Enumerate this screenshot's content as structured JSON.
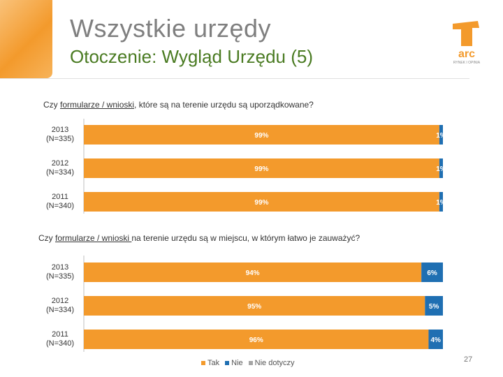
{
  "header": {
    "title": "Wszystkie urzędy",
    "subtitle": "Otoczenie: Wygląd Urzędu (5)"
  },
  "logo": {
    "brand": "arc",
    "tagline": "RYNEK I OPINIA"
  },
  "page_number": "27",
  "legend": {
    "items": [
      {
        "label": "Tak",
        "color": "#f39a2c"
      },
      {
        "label": "Nie",
        "color": "#1f6fb2"
      },
      {
        "label": "Nie dotyczy",
        "color": "#a5a5a5"
      }
    ]
  },
  "chart_data": [
    {
      "type": "bar",
      "orientation": "horizontal-stacked-100",
      "title_parts": [
        "Czy ",
        "formularze / wnioski",
        ", które są na terenie urzędu są uporządkowane?"
      ],
      "categories": [
        "2013\n(N=335)",
        "2012\n(N=334)",
        "2011\n(N=340)"
      ],
      "category_lines": [
        [
          "2013",
          "(N=335)"
        ],
        [
          "2012",
          "(N=334)"
        ],
        [
          "2011",
          "(N=340)"
        ]
      ],
      "series": [
        {
          "name": "Tak",
          "color": "#f39a2c",
          "values": [
            99,
            99,
            99
          ],
          "labels": [
            "99%",
            "99%",
            "99%"
          ]
        },
        {
          "name": "Nie",
          "color": "#1f6fb2",
          "values": [
            1,
            1,
            1
          ],
          "labels": [
            "1%",
            "1%",
            "1%"
          ]
        }
      ],
      "xlim": [
        0,
        100
      ]
    },
    {
      "type": "bar",
      "orientation": "horizontal-stacked-100",
      "title_parts": [
        "Czy ",
        "formularze / wnioski ",
        "na terenie urzędu są w miejscu, w którym łatwo je zauważyć?"
      ],
      "categories": [
        "2013\n(N=335)",
        "2012\n(N=334)",
        "2011\n(N=340)"
      ],
      "category_lines": [
        [
          "2013",
          "(N=335)"
        ],
        [
          "2012",
          "(N=334)"
        ],
        [
          "2011",
          "(N=340)"
        ]
      ],
      "series": [
        {
          "name": "Tak",
          "color": "#f39a2c",
          "values": [
            94,
            95,
            96
          ],
          "labels": [
            "94%",
            "95%",
            "96%"
          ]
        },
        {
          "name": "Nie",
          "color": "#1f6fb2",
          "values": [
            6,
            5,
            4
          ],
          "labels": [
            "6%",
            "5%",
            "4%"
          ]
        }
      ],
      "xlim": [
        0,
        100
      ]
    }
  ]
}
